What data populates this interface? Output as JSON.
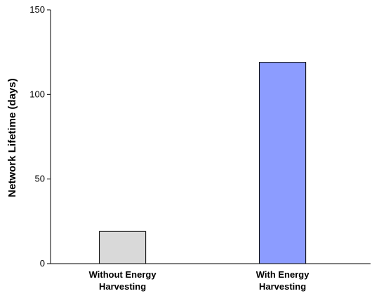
{
  "chart_data": {
    "type": "bar",
    "categories": [
      [
        "Without Energy",
        "Harvesting"
      ],
      [
        "With Energy",
        "Harvesting"
      ]
    ],
    "values": [
      19,
      119
    ],
    "bar_colors": [
      "#d9d9d9",
      "#8c9cff"
    ],
    "bar_border_color": "#000000",
    "title": "",
    "xlabel": "",
    "ylabel": "Network Lifetime (days)",
    "ylim": [
      0,
      150
    ],
    "yticks": [
      0,
      50,
      100,
      150
    ],
    "grid": false,
    "legend": "none"
  }
}
